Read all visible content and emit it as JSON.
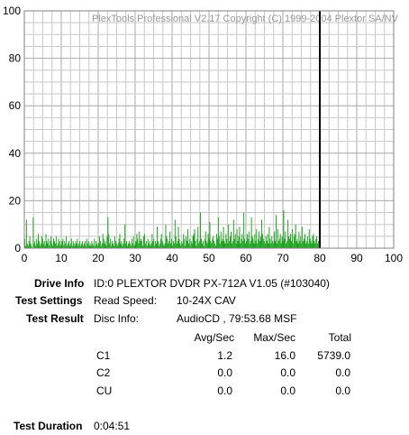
{
  "chart_data": {
    "type": "area",
    "title": "PlexTools Professional V2.17 Copyright (C) 1999-2004 Plextor SA/NV",
    "xlim": [
      0,
      100
    ],
    "ylim": [
      0,
      100
    ],
    "x_ticks": [
      "0",
      "10",
      "20",
      "30",
      "40",
      "50",
      "60",
      "70",
      "80",
      "90",
      "100"
    ],
    "y_ticks": [
      "0",
      "20",
      "40",
      "60",
      "80",
      "100"
    ],
    "grid": true,
    "colors": {
      "series": "#19a019",
      "marker": "#000000",
      "grid": "#c8c8c8"
    },
    "end_marker_x": 80,
    "series": [
      {
        "values": [
          4,
          1,
          12,
          2,
          1,
          3,
          5,
          2,
          1,
          0,
          13,
          2,
          3,
          1,
          4,
          2,
          6,
          3,
          1,
          2,
          5,
          4,
          2,
          3,
          1,
          6,
          3,
          2,
          4,
          1,
          3,
          5,
          2,
          1,
          4,
          3,
          2,
          5,
          1,
          2,
          4,
          3,
          1,
          2,
          3,
          4,
          1,
          3,
          2,
          5,
          1,
          2,
          3,
          1,
          2,
          4,
          1,
          3,
          2,
          1,
          3,
          2,
          4,
          1,
          2,
          3,
          1,
          2,
          3,
          1,
          2,
          3,
          1,
          4,
          2,
          3,
          1,
          2,
          1,
          3,
          2,
          1,
          4,
          1,
          3,
          2,
          1,
          2,
          5,
          3,
          1,
          2,
          6,
          4,
          2,
          3,
          1,
          5,
          13,
          6,
          2,
          4,
          1,
          3,
          2,
          1,
          5,
          3,
          2,
          1,
          2,
          4,
          6,
          2,
          3,
          1,
          2,
          4,
          10,
          2,
          3,
          1,
          2,
          3,
          2,
          1,
          4,
          2,
          5,
          1,
          2,
          3,
          6,
          4,
          2,
          7,
          3,
          4,
          3,
          1,
          5,
          6,
          2,
          3,
          1,
          4,
          2,
          3,
          1,
          2,
          6,
          3,
          4,
          1,
          3,
          2,
          9,
          3,
          1,
          2,
          4,
          6,
          3,
          2,
          1,
          2,
          10,
          5,
          4,
          2,
          3,
          7,
          2,
          4,
          1,
          3,
          2,
          12,
          5,
          2,
          3,
          9,
          4,
          2,
          1,
          3,
          2,
          6,
          4,
          1,
          5,
          3,
          8,
          2,
          4,
          1,
          3,
          2,
          5,
          6,
          8,
          3,
          1,
          4,
          9,
          2,
          3,
          15,
          4,
          2,
          3,
          1,
          4,
          7,
          3,
          2,
          6,
          4,
          11,
          3,
          2,
          4,
          5,
          3,
          2,
          1,
          6,
          4,
          13,
          5,
          2,
          7,
          3,
          4,
          9,
          3,
          2,
          6,
          4,
          2,
          10,
          3,
          5,
          7,
          2,
          3,
          12,
          4,
          6,
          2,
          8,
          3,
          5,
          9,
          2,
          4,
          6,
          3,
          15,
          4,
          2,
          3,
          6,
          4,
          7,
          2,
          3,
          13,
          5,
          4,
          2,
          6,
          3,
          8,
          2,
          4,
          7,
          3,
          5,
          12,
          6,
          4,
          3,
          2,
          5,
          3,
          6,
          2,
          9,
          4,
          2,
          5,
          3,
          2,
          7,
          3,
          14,
          2,
          8,
          3,
          4,
          6,
          2,
          5,
          3,
          16,
          4,
          7,
          2,
          3,
          12,
          5,
          4,
          6,
          3,
          8,
          2,
          5,
          6,
          10,
          3,
          4,
          2,
          7,
          3,
          5,
          2,
          9,
          3,
          4,
          6,
          2,
          3,
          5,
          2,
          8,
          4,
          3,
          2,
          5,
          6,
          3,
          2,
          4,
          5,
          2,
          3,
          1
        ]
      }
    ]
  },
  "info": {
    "drive_info_label": "Drive Info",
    "drive_info_value": "ID:0 PLEXTOR DVDR PX-712A V1.05 (#103040)",
    "test_settings_label": "Test Settings",
    "read_speed_label": "Read Speed:",
    "read_speed_value": "10-24X CAV",
    "test_result_label": "Test Result",
    "disc_info_label": "Disc Info:",
    "disc_info_value": "AudioCD , 79:53.68 MSF",
    "test_duration_label": "Test Duration",
    "test_duration_value": "0:04:51"
  },
  "results": {
    "headers": [
      "Avg/Sec",
      "Max/Sec",
      "Total"
    ],
    "rows": [
      {
        "name": "C1",
        "avg": "1.2",
        "max": "16.0",
        "total": "5739.0"
      },
      {
        "name": "C2",
        "avg": "0.0",
        "max": "0.0",
        "total": "0.0"
      },
      {
        "name": "CU",
        "avg": "0.0",
        "max": "0.0",
        "total": "0.0"
      }
    ]
  }
}
